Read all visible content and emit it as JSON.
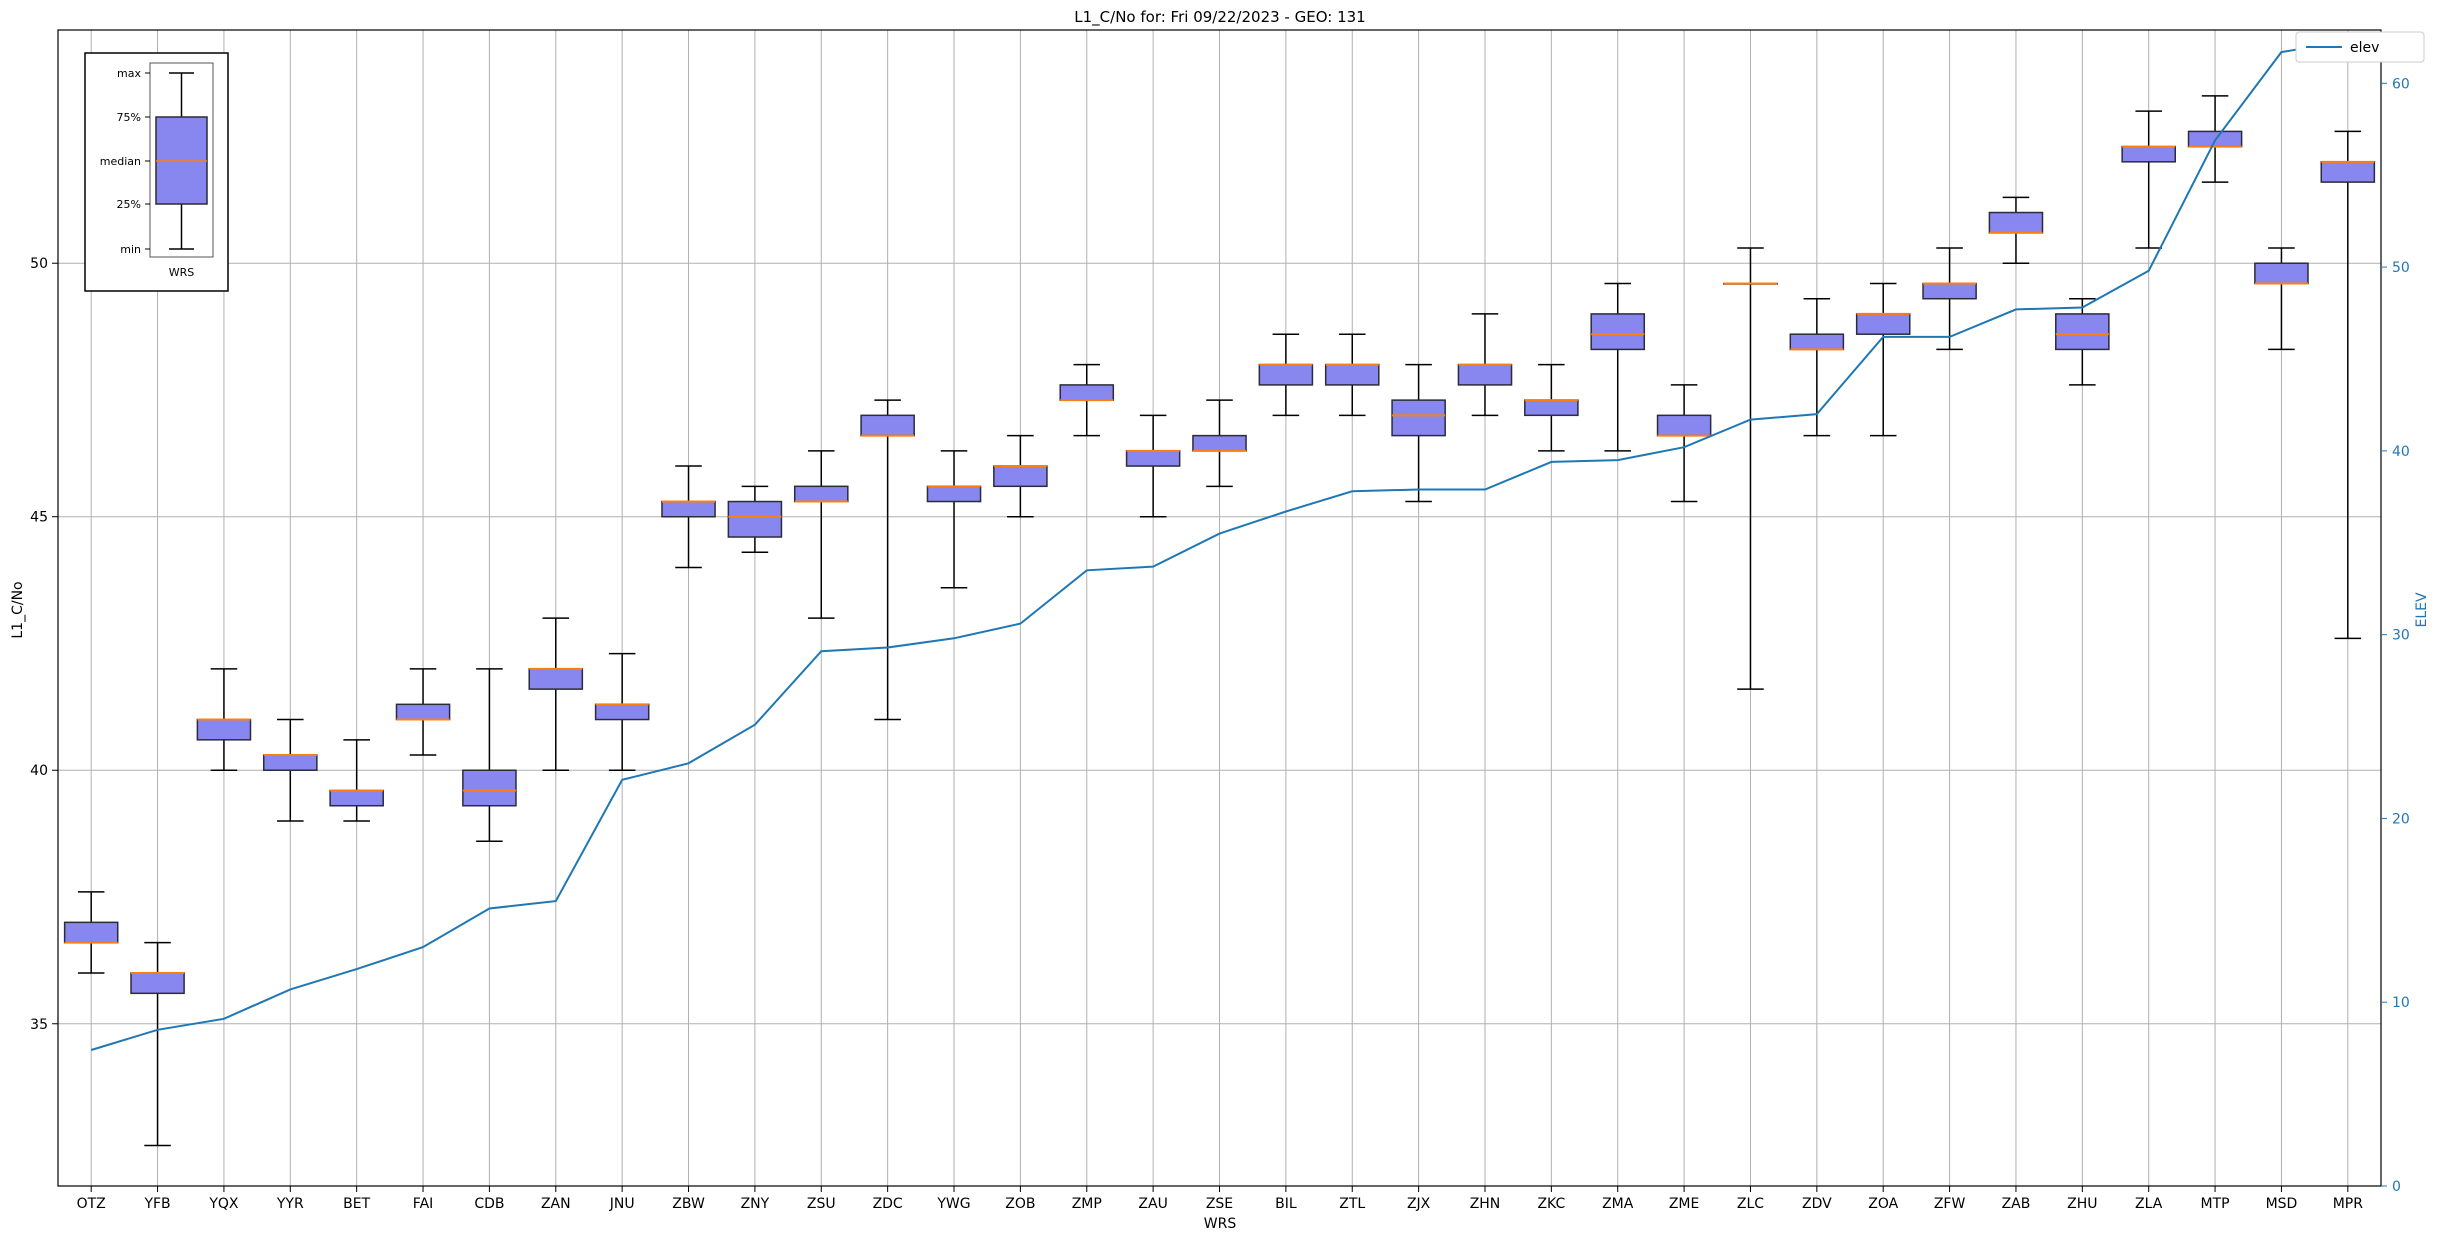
{
  "chart_data": {
    "type": "box",
    "title": "L1_C/No for: Fri 09/22/2023 - GEO: 131",
    "xlabel": "WRS",
    "ylabel": "L1_C/No",
    "y2label": "ELEV",
    "ylim": [
      31.8,
      54.6
    ],
    "y2lim": [
      0,
      62.9
    ],
    "yticks": [
      35,
      40,
      45,
      50
    ],
    "y2ticks": [
      0,
      10,
      20,
      30,
      40,
      50,
      60
    ],
    "grid": true,
    "legend": {
      "placement": "top-right",
      "entries": [
        "elev"
      ]
    },
    "colors": {
      "box_fill": "#8787ef",
      "box_edge": "#2b2b3a",
      "median": "#ff7f0e",
      "elev_line": "#1f77b4",
      "elev_axis": "#1f77b4"
    },
    "stations": [
      "OTZ",
      "YFB",
      "YQX",
      "YYR",
      "BET",
      "FAI",
      "CDB",
      "ZAN",
      "JNU",
      "ZBW",
      "ZNY",
      "ZSU",
      "ZDC",
      "YWG",
      "ZOB",
      "ZMP",
      "ZAU",
      "ZSE",
      "BIL",
      "ZTL",
      "ZJX",
      "ZHN",
      "ZKC",
      "ZMA",
      "ZME",
      "ZLC",
      "ZDV",
      "ZOA",
      "ZFW",
      "ZAB",
      "ZHU",
      "ZLA",
      "MTP",
      "MSD",
      "MPR"
    ],
    "boxes": [
      {
        "min": 36.0,
        "q1": 36.6,
        "median": 36.6,
        "q3": 37.0,
        "max": 37.6
      },
      {
        "min": 32.6,
        "q1": 35.6,
        "median": 36.0,
        "q3": 36.0,
        "max": 36.6
      },
      {
        "min": 40.0,
        "q1": 40.6,
        "median": 41.0,
        "q3": 41.0,
        "max": 42.0
      },
      {
        "min": 39.0,
        "q1": 40.0,
        "median": 40.3,
        "q3": 40.3,
        "max": 41.0
      },
      {
        "min": 39.0,
        "q1": 39.3,
        "median": 39.6,
        "q3": 39.6,
        "max": 40.6
      },
      {
        "min": 40.3,
        "q1": 41.0,
        "median": 41.0,
        "q3": 41.3,
        "max": 42.0
      },
      {
        "min": 38.6,
        "q1": 39.3,
        "median": 39.6,
        "q3": 40.0,
        "max": 42.0
      },
      {
        "min": 40.0,
        "q1": 41.6,
        "median": 42.0,
        "q3": 42.0,
        "max": 43.0
      },
      {
        "min": 40.0,
        "q1": 41.0,
        "median": 41.3,
        "q3": 41.3,
        "max": 42.3
      },
      {
        "min": 44.0,
        "q1": 45.0,
        "median": 45.3,
        "q3": 45.3,
        "max": 46.0
      },
      {
        "min": 44.3,
        "q1": 44.6,
        "median": 45.0,
        "q3": 45.3,
        "max": 45.6
      },
      {
        "min": 43.0,
        "q1": 45.3,
        "median": 45.3,
        "q3": 45.6,
        "max": 46.3
      },
      {
        "min": 41.0,
        "q1": 46.6,
        "median": 46.6,
        "q3": 47.0,
        "max": 47.3
      },
      {
        "min": 43.6,
        "q1": 45.3,
        "median": 45.6,
        "q3": 45.6,
        "max": 46.3
      },
      {
        "min": 45.0,
        "q1": 45.6,
        "median": 46.0,
        "q3": 46.0,
        "max": 46.6
      },
      {
        "min": 46.6,
        "q1": 47.3,
        "median": 47.3,
        "q3": 47.6,
        "max": 48.0
      },
      {
        "min": 45.0,
        "q1": 46.0,
        "median": 46.3,
        "q3": 46.3,
        "max": 47.0
      },
      {
        "min": 45.6,
        "q1": 46.3,
        "median": 46.3,
        "q3": 46.6,
        "max": 47.3
      },
      {
        "min": 47.0,
        "q1": 47.6,
        "median": 48.0,
        "q3": 48.0,
        "max": 48.6
      },
      {
        "min": 47.0,
        "q1": 47.6,
        "median": 48.0,
        "q3": 48.0,
        "max": 48.6
      },
      {
        "min": 45.3,
        "q1": 46.6,
        "median": 47.0,
        "q3": 47.3,
        "max": 48.0
      },
      {
        "min": 47.0,
        "q1": 47.6,
        "median": 48.0,
        "q3": 48.0,
        "max": 49.0
      },
      {
        "min": 46.3,
        "q1": 47.0,
        "median": 47.3,
        "q3": 47.3,
        "max": 48.0
      },
      {
        "min": 46.3,
        "q1": 48.3,
        "median": 48.6,
        "q3": 49.0,
        "max": 49.6
      },
      {
        "min": 45.3,
        "q1": 46.6,
        "median": 46.6,
        "q3": 47.0,
        "max": 47.6
      },
      {
        "min": 41.6,
        "q1": 49.6,
        "median": 49.6,
        "q3": 49.6,
        "max": 50.3
      },
      {
        "min": 46.6,
        "q1": 48.3,
        "median": 48.3,
        "q3": 48.6,
        "max": 49.3
      },
      {
        "min": 46.6,
        "q1": 48.6,
        "median": 49.0,
        "q3": 49.0,
        "max": 49.6
      },
      {
        "min": 48.3,
        "q1": 49.3,
        "median": 49.6,
        "q3": 49.6,
        "max": 50.3
      },
      {
        "min": 50.0,
        "q1": 50.6,
        "median": 50.6,
        "q3": 51.0,
        "max": 51.3
      },
      {
        "min": 47.6,
        "q1": 48.3,
        "median": 48.6,
        "q3": 49.0,
        "max": 49.3
      },
      {
        "min": 50.3,
        "q1": 52.0,
        "median": 52.3,
        "q3": 52.3,
        "max": 53.0
      },
      {
        "min": 51.6,
        "q1": 52.3,
        "median": 52.3,
        "q3": 52.6,
        "max": 53.3
      },
      {
        "min": 48.3,
        "q1": 49.6,
        "median": 49.6,
        "q3": 50.0,
        "max": 50.3
      },
      {
        "min": 42.6,
        "q1": 51.6,
        "median": 52.0,
        "q3": 52.0,
        "max": 52.6
      }
    ],
    "elev": [
      7.4,
      8.5,
      9.1,
      10.7,
      11.8,
      13.0,
      15.1,
      15.5,
      22.1,
      23.0,
      25.1,
      29.1,
      29.3,
      29.8,
      30.6,
      33.5,
      33.7,
      35.5,
      36.7,
      37.8,
      37.9,
      37.9,
      39.4,
      39.5,
      40.2,
      41.7,
      42.0,
      46.2,
      46.2,
      47.7,
      47.8,
      49.8,
      56.9,
      61.7,
      62.3
    ],
    "inset_legend": {
      "labels": [
        "max",
        "75%",
        "median",
        "25%",
        "min"
      ],
      "category": "WRS"
    }
  }
}
